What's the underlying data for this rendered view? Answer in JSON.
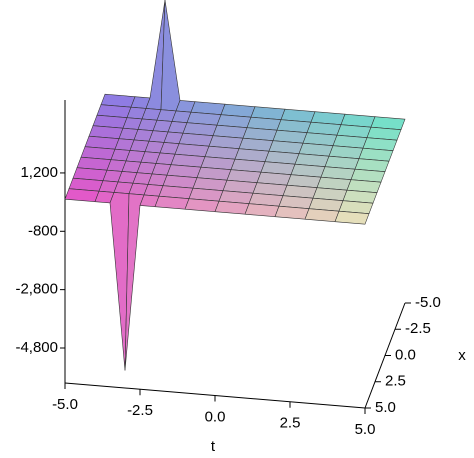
{
  "chart_data": {
    "type": "surface",
    "t_axis_label": "t",
    "x_axis_label": "x",
    "t": [
      -5,
      -4,
      -3.5,
      -3,
      -2.5,
      -2,
      -1,
      0,
      1,
      2,
      3,
      4,
      5
    ],
    "x": [
      -5,
      -4,
      -3,
      -2,
      -1,
      0,
      1,
      2,
      3,
      4,
      5
    ],
    "z": [
      [
        300,
        300,
        300,
        3700,
        300,
        300,
        300,
        300,
        300,
        300,
        300,
        300,
        300
      ],
      [
        300,
        300,
        300,
        300,
        300,
        300,
        300,
        300,
        300,
        300,
        300,
        300,
        300
      ],
      [
        300,
        300,
        300,
        300,
        300,
        300,
        300,
        300,
        300,
        300,
        300,
        300,
        300
      ],
      [
        300,
        300,
        300,
        300,
        300,
        300,
        300,
        300,
        300,
        300,
        300,
        300,
        300
      ],
      [
        300,
        300,
        300,
        300,
        300,
        300,
        300,
        300,
        300,
        300,
        300,
        300,
        300
      ],
      [
        300,
        300,
        300,
        300,
        300,
        300,
        300,
        300,
        300,
        300,
        300,
        300,
        300
      ],
      [
        300,
        300,
        300,
        300,
        300,
        300,
        300,
        300,
        300,
        300,
        300,
        300,
        300
      ],
      [
        300,
        300,
        300,
        300,
        300,
        300,
        300,
        300,
        300,
        300,
        300,
        300,
        300
      ],
      [
        300,
        300,
        300,
        300,
        300,
        300,
        300,
        300,
        300,
        300,
        300,
        300,
        300
      ],
      [
        300,
        300,
        300,
        300,
        300,
        300,
        300,
        300,
        300,
        300,
        300,
        300,
        300
      ],
      [
        300,
        300,
        300,
        -5400,
        300,
        300,
        300,
        300,
        300,
        300,
        300,
        300,
        300
      ]
    ],
    "tlim": [
      -5,
      5
    ],
    "xlim": [
      -5,
      5
    ],
    "zlim": [
      -6000,
      3700
    ],
    "tticks": [
      {
        "value": -5,
        "label": "-5.0"
      },
      {
        "value": -2.5,
        "label": "-2.5"
      },
      {
        "value": 0,
        "label": "0.0"
      },
      {
        "value": 2.5,
        "label": "2.5"
      },
      {
        "value": 5,
        "label": "5.0"
      }
    ],
    "xticks": [
      {
        "value": -5,
        "label": "-5.0"
      },
      {
        "value": -2.5,
        "label": "-2.5"
      },
      {
        "value": 0,
        "label": "0.0"
      },
      {
        "value": 2.5,
        "label": "2.5"
      },
      {
        "value": 5,
        "label": "5.0"
      }
    ],
    "zticks": [
      {
        "value": 1200,
        "label": "1,200"
      },
      {
        "value": -800,
        "label": "-800"
      },
      {
        "value": -2800,
        "label": "-2,800"
      },
      {
        "value": -4800,
        "label": "-4,800"
      }
    ]
  }
}
